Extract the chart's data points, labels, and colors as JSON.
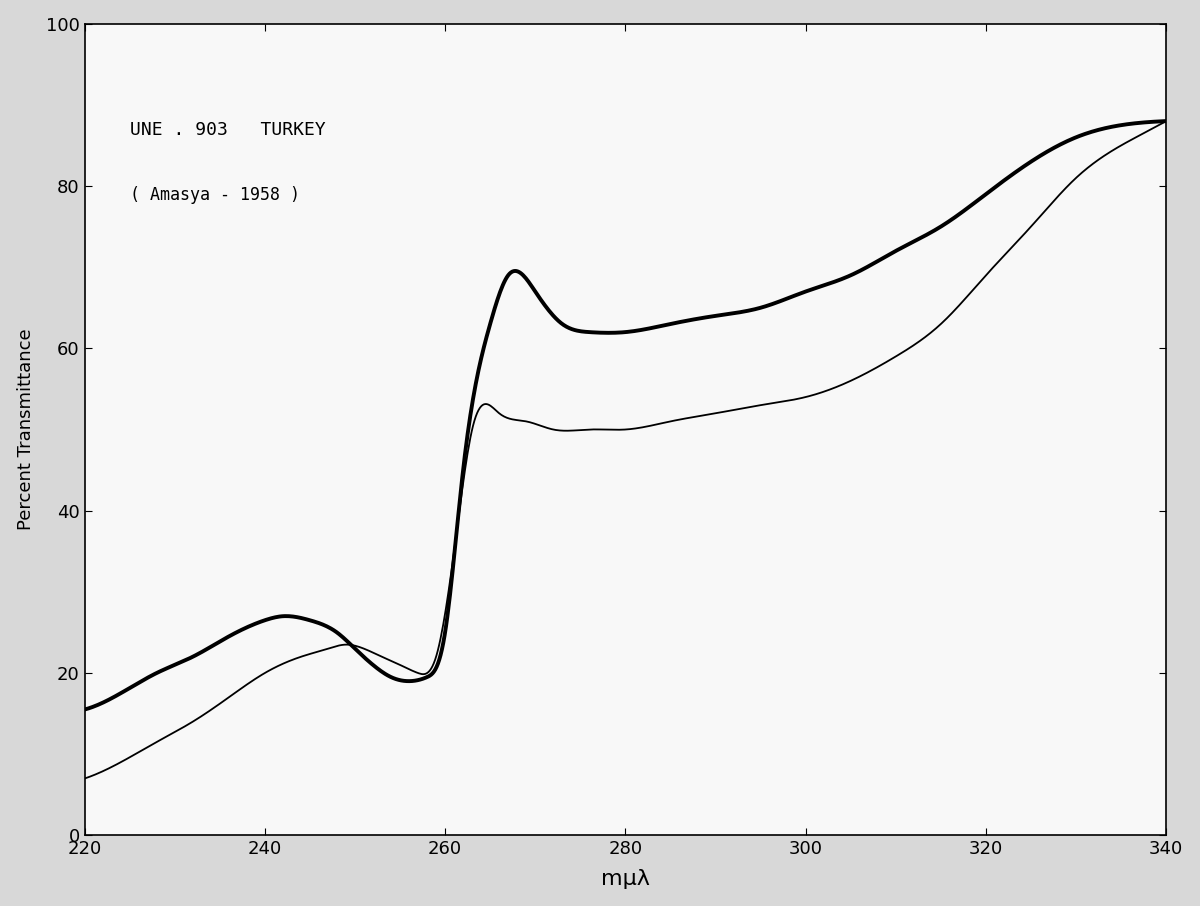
{
  "xlabel": "mμλ",
  "ylabel": "Percent Transmittance",
  "annotation_line1": "UNE . 903   TURKEY",
  "annotation_line2": "( Amasya - 1958 )",
  "xlim": [
    220,
    340
  ],
  "ylim": [
    0,
    100
  ],
  "xticks": [
    220,
    240,
    260,
    280,
    300,
    320,
    340
  ],
  "yticks": [
    0,
    20,
    40,
    60,
    80,
    100
  ],
  "background_color": "#ffffff",
  "curve1_x": [
    220,
    224,
    228,
    232,
    236,
    240,
    242,
    245,
    248,
    250,
    252,
    254,
    256,
    258,
    260,
    262,
    265,
    267,
    270,
    273,
    276,
    280,
    285,
    290,
    295,
    300,
    305,
    310,
    315,
    320,
    325,
    330,
    335,
    340
  ],
  "curve1_y": [
    15.5,
    17.5,
    20,
    22,
    24.5,
    26.5,
    27,
    26.5,
    25,
    23,
    21,
    19.5,
    19,
    19.5,
    25,
    45,
    63,
    69,
    67,
    63,
    62,
    62,
    63,
    64,
    65,
    67,
    69,
    72,
    75,
    79,
    83,
    86,
    87.5,
    88
  ],
  "curve2_x": [
    220,
    224,
    228,
    232,
    236,
    240,
    244,
    247,
    249,
    251,
    253,
    255,
    257,
    259,
    261,
    263,
    266,
    269,
    272,
    276,
    280,
    285,
    290,
    295,
    300,
    305,
    310,
    315,
    320,
    325,
    330,
    335,
    340
  ],
  "curve2_y": [
    7,
    9,
    11.5,
    14,
    17,
    20,
    22,
    23,
    23.5,
    23,
    22,
    21,
    20,
    22,
    35,
    50,
    52,
    51,
    50,
    50,
    50,
    51,
    52,
    53,
    54,
    56,
    59,
    63,
    69,
    75,
    81,
    85,
    88
  ],
  "curve1_lw": 2.8,
  "curve2_lw": 1.3,
  "line_color": "#000000",
  "fig_bg": "#d8d8d8",
  "plot_bg": "#f8f8f8"
}
